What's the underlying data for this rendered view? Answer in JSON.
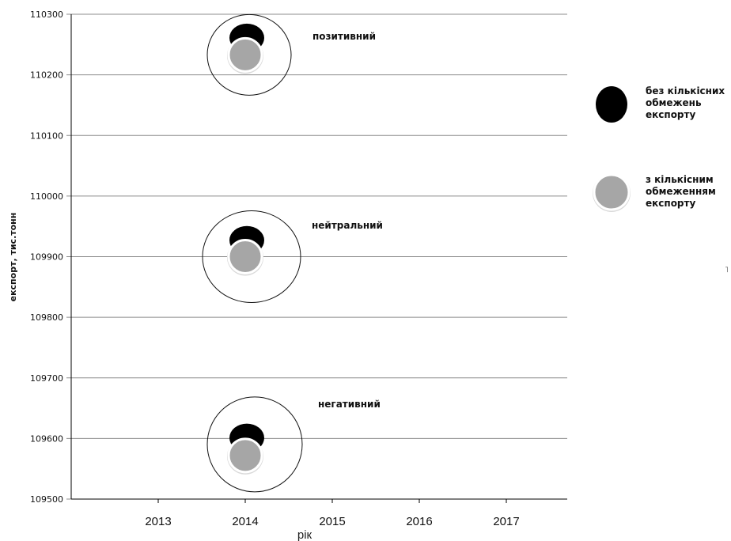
{
  "chart_data": {
    "type": "scatter",
    "xlabel": "рік",
    "ylabel": "експорт, тис.тонн",
    "x_ticks": [
      "2013",
      "2014",
      "2015",
      "2016",
      "2017"
    ],
    "y_ticks": [
      "109500",
      "109600",
      "109700",
      "109800",
      "109900",
      "110000",
      "110100",
      "110200",
      "110300"
    ],
    "xlim": [
      2012,
      2017.7
    ],
    "ylim": [
      109500,
      110300
    ],
    "grid": true,
    "legend_position": "right",
    "series": [
      {
        "name": "без кількісних обмежень експорту",
        "legend_lines": [
          "без кількісних",
          "обмежень",
          "експорту"
        ],
        "color": "#000000",
        "points": [
          {
            "x": 2014,
            "y": 110261
          },
          {
            "x": 2014,
            "y": 109927
          },
          {
            "x": 2014,
            "y": 109601
          }
        ]
      },
      {
        "name": "з кількісним обмеженням експорту",
        "legend_lines": [
          "з кількісним",
          "обмеженням",
          "експорту"
        ],
        "color": "#a6a6a6",
        "points": [
          {
            "x": 2014,
            "y": 110233
          },
          {
            "x": 2014,
            "y": 109900
          },
          {
            "x": 2014,
            "y": 109572
          }
        ]
      }
    ],
    "annotations": [
      {
        "text": "позитивний",
        "x": 2014.15,
        "y": 110235
      },
      {
        "text": "нейтральний",
        "x": 2014.2,
        "y": 109900
      },
      {
        "text": "негативний",
        "x": 2014.25,
        "y": 109585
      }
    ]
  }
}
